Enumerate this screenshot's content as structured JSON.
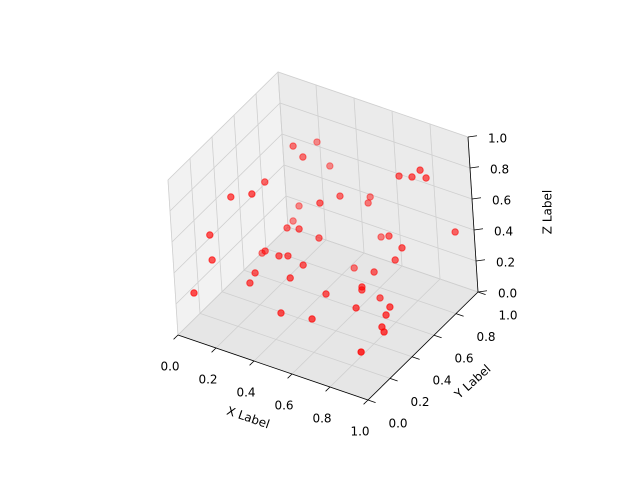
{
  "chart_data": {
    "type": "scatter3d",
    "xlabel": "X Label",
    "ylabel": "Y Label",
    "zlabel": "Z Label",
    "color": "#ff0000",
    "xlim": [
      0,
      1
    ],
    "ylim": [
      0,
      1
    ],
    "zlim": [
      0,
      1
    ],
    "xticks": [
      {
        "value": 0,
        "label": "0.0"
      },
      0.2,
      0.4,
      0.6,
      0.8,
      {
        "value": 1,
        "label": "1.0"
      }
    ],
    "yticks": [
      {
        "value": 0,
        "label": "0.0"
      },
      0.2,
      0.4,
      0.6,
      0.8,
      {
        "value": 1,
        "label": "1.0"
      }
    ],
    "zticks": [
      {
        "value": 0,
        "label": "0.0"
      },
      0.2,
      0.4,
      0.6,
      0.8,
      {
        "value": 1,
        "label": "1.0"
      }
    ],
    "grid": true,
    "x": [
      0.255,
      0.234,
      0.304,
      0.281,
      0.222,
      0.252,
      0.149,
      0.473,
      0.455,
      0.156,
      0.496,
      0.512,
      0.127,
      0.262,
      0.346,
      0.394,
      0.087,
      0.203,
      0.068,
      0.309,
      0.344,
      0.407,
      0.097,
      0.218,
      0.205,
      0.375,
      0.059,
      0.454,
      0.646,
      0.658,
      0.637,
      0.513,
      0.674,
      0.653,
      0.814,
      0.38,
      0.525,
      0.798,
      0.797,
      0.825,
      0.848,
      0.755,
      0.842,
      0.879,
      0.901,
      0.692,
      0.534,
      0.79,
      0.746,
      0.967
    ],
    "y": [
      0.683,
      0.923,
      0.683,
      0.945,
      0.474,
      0.309,
      0.291,
      0.71,
      0.563,
      0.858,
      0.931,
      0.885,
      0.845,
      0.575,
      0.544,
      0.633,
      0.189,
      0.469,
      0.656,
      0.416,
      0.437,
      0.462,
      0.179,
      0.347,
      0.318,
      0.395,
      0.066,
      0.822,
      0.685,
      0.554,
      0.585,
      0.473,
      0.677,
      0.5,
      0.534,
      0.289,
      0.321,
      0.522,
      0.482,
      0.453,
      0.209,
      0.778,
      0.75,
      0.764,
      0.776,
      0.759,
      0.942,
      0.708,
      0.713,
      0.89
    ],
    "z": [
      0.85,
      0.7,
      0.8,
      0.55,
      0.75,
      0.8,
      0.75,
      0.6,
      0.65,
      0.3,
      0.45,
      0.45,
      0.2,
      0.4,
      0.45,
      0.35,
      0.55,
      0.3,
      0.1,
      0.35,
      0.35,
      0.3,
      0.4,
      0.25,
      0.2,
      0.25,
      0.25,
      0.05,
      0.2,
      0.2,
      0.15,
      0.15,
      0.05,
      0.1,
      0.15,
      0.1,
      0.1,
      0.1,
      0.05,
      0.05,
      0.1,
      0.8,
      0.85,
      0.9,
      0.85,
      0.4,
      0.2,
      0.4,
      0.3,
      0.45
    ]
  }
}
